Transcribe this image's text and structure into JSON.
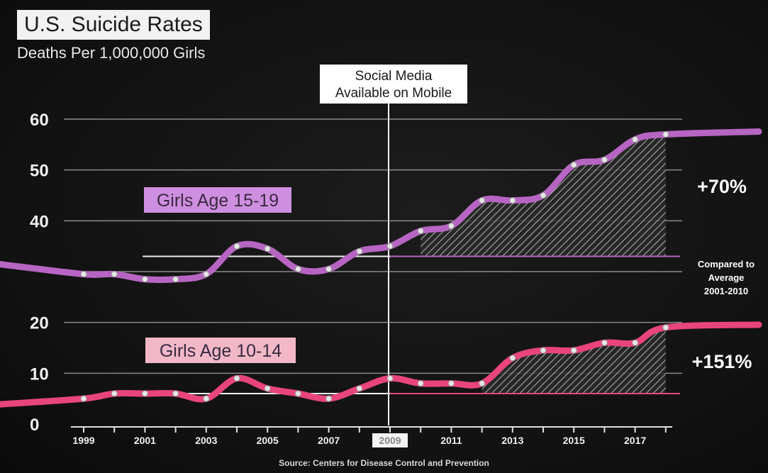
{
  "header": {
    "title": "U.S. Suicide Rates",
    "subtitle": "Deaths Per 1,000,000 Girls"
  },
  "source": "Source: Centers for Disease Control and Prevention",
  "colors": {
    "girls_15_19": "#b765c3",
    "girls_10_14": "#e8447e",
    "label_15_19_bg": "#cf8fe0",
    "label_10_14_bg": "#f2b8c8",
    "annotation_bg": "#ffffff",
    "gridline": "#8a8a8a"
  },
  "chart_data": {
    "type": "line",
    "title": "U.S. Suicide Rates",
    "subtitle": "Deaths Per 1,000,000 Girls",
    "xlabel": "",
    "ylabel": "",
    "xlim": [
      1998,
      2019
    ],
    "ylim": [
      0,
      60
    ],
    "yticks": [
      0,
      10,
      20,
      40,
      50,
      60
    ],
    "xtick_labels": [
      "1999",
      "2001",
      "2003",
      "2005",
      "2007",
      "2009",
      "2011",
      "2013",
      "2015",
      "2017"
    ],
    "highlighted_tick": "2009",
    "grid": true,
    "series": [
      {
        "name": "Girls Age 15-19",
        "x": [
          1999,
          2000,
          2001,
          2002,
          2003,
          2004,
          2005,
          2006,
          2007,
          2008,
          2009,
          2010,
          2011,
          2012,
          2013,
          2014,
          2015,
          2016,
          2017,
          2018
        ],
        "values": [
          29.5,
          29.5,
          28.5,
          28.5,
          29.5,
          35,
          34.5,
          30.5,
          30.5,
          34,
          35,
          38,
          39,
          44,
          44,
          45,
          51,
          52,
          56,
          57
        ],
        "average_2001_2010": 33,
        "change_label": "+70%"
      },
      {
        "name": "Girls Age 10-14",
        "x": [
          1999,
          2000,
          2001,
          2002,
          2003,
          2004,
          2005,
          2006,
          2007,
          2008,
          2009,
          2010,
          2011,
          2012,
          2013,
          2014,
          2015,
          2016,
          2017,
          2018
        ],
        "values": [
          5,
          6,
          6,
          6,
          5,
          9,
          7,
          6,
          5,
          7,
          9,
          8,
          8,
          8,
          13,
          14.5,
          14.5,
          16,
          16,
          19
        ],
        "average_2001_2010": 6,
        "change_label": "+151%"
      }
    ],
    "annotations": {
      "event_label": "Social Media Available on Mobile",
      "event_line_1": "Social Media",
      "event_line_2": "Available on Mobile",
      "event_x": 2009,
      "compared_line_1": "Compared to",
      "compared_line_2": "Average",
      "compared_line_3": "2001-2010"
    }
  }
}
